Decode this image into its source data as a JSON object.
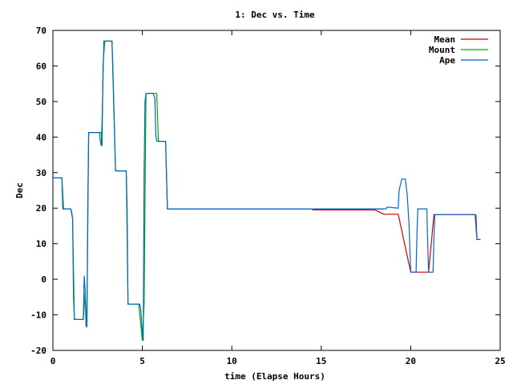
{
  "chart_data": {
    "type": "line",
    "title": "1: Dec vs. Time",
    "xlabel": "time (Elapse Hours)",
    "ylabel": "Dec",
    "xlim": [
      0,
      25
    ],
    "ylim": [
      -20,
      70
    ],
    "xticks": [
      0,
      5,
      10,
      15,
      20,
      25
    ],
    "yticks": [
      -20,
      -10,
      0,
      10,
      20,
      30,
      40,
      50,
      60,
      70
    ],
    "grid": false,
    "legend_position": "top-right",
    "series": [
      {
        "name": "Mean",
        "color": "#cc0000",
        "x": [
          14.5,
          18.0,
          18.5,
          19.3,
          20.0,
          20.3,
          21.0,
          21.3,
          23.6,
          23.7,
          23.9
        ],
        "y": [
          19.5,
          19.5,
          18.3,
          18.3,
          2.0,
          2.0,
          2.0,
          18.2,
          18.2,
          11.2,
          11.2
        ]
      },
      {
        "name": "Mount",
        "color": "#00aa00",
        "x": [
          0.0,
          0.5,
          0.6,
          1.0,
          1.1,
          1.2,
          1.3,
          1.4,
          1.7,
          1.8,
          1.9,
          2.0,
          2.7,
          2.75,
          2.8,
          2.9,
          3.3,
          3.5,
          4.1,
          4.2,
          4.8,
          5.0,
          5.1,
          5.2,
          5.3,
          5.4,
          5.8,
          5.9,
          6.3,
          6.4,
          18.5
        ],
        "y": [
          28.5,
          28.5,
          19.8,
          19.8,
          17.0,
          -11.3,
          -11.3,
          -11.3,
          -11.3,
          -4.0,
          -13.5,
          41.3,
          41.3,
          37.5,
          60.0,
          67.0,
          67.0,
          30.5,
          30.5,
          -7.0,
          -7.0,
          -17.3,
          -7.0,
          52.3,
          52.3,
          52.3,
          52.3,
          38.8,
          38.8,
          19.8,
          19.8
        ]
      },
      {
        "name": "Ape",
        "color": "#0066cc",
        "x": [
          0.0,
          0.5,
          0.55,
          1.0,
          1.05,
          1.1,
          1.15,
          1.2,
          1.25,
          1.7,
          1.75,
          1.8,
          1.85,
          1.9,
          1.95,
          2.0,
          2.1,
          2.6,
          2.65,
          2.7,
          2.75,
          2.8,
          2.85,
          2.9,
          3.3,
          3.35,
          3.5,
          3.55,
          4.1,
          4.15,
          4.2,
          4.8,
          4.85,
          4.9,
          5.0,
          5.05,
          5.1,
          5.15,
          5.2,
          5.6,
          5.7,
          5.75,
          5.8,
          5.85,
          6.3,
          6.35,
          6.4,
          14.5,
          18.6,
          18.7,
          19.3,
          19.35,
          19.5,
          19.7,
          19.8,
          19.9,
          20.0,
          20.05,
          20.3,
          20.35,
          20.4,
          20.9,
          20.95,
          21.0,
          21.25,
          21.3,
          21.35,
          23.6,
          23.65,
          23.7,
          23.9
        ],
        "y": [
          28.5,
          28.5,
          19.8,
          19.8,
          19.0,
          17.0,
          -5.0,
          -11.3,
          -11.3,
          -11.3,
          1.0,
          -3.0,
          -13.0,
          -13.5,
          20.0,
          41.3,
          41.3,
          41.3,
          39.0,
          37.5,
          45.0,
          56.0,
          67.0,
          67.0,
          67.0,
          60.0,
          31.0,
          30.5,
          30.5,
          20.0,
          -7.0,
          -7.0,
          -7.0,
          -8.0,
          -15.0,
          -17.3,
          30.0,
          50.0,
          52.3,
          52.3,
          51.0,
          41.0,
          38.8,
          38.8,
          38.8,
          30.0,
          19.8,
          19.8,
          19.8,
          20.3,
          20.0,
          25.0,
          28.2,
          28.2,
          24.0,
          16.0,
          2.0,
          2.0,
          2.0,
          13.0,
          19.8,
          19.8,
          10.0,
          2.0,
          2.0,
          12.0,
          18.2,
          18.2,
          18.0,
          11.2,
          11.2
        ]
      }
    ]
  }
}
